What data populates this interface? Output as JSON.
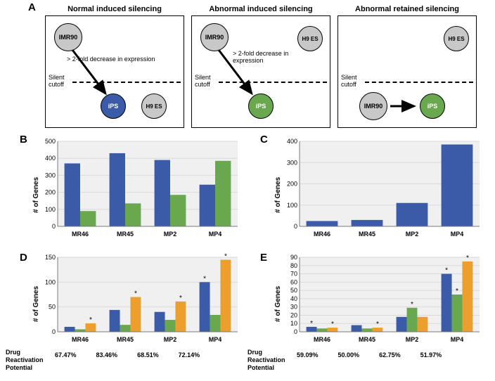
{
  "labels": {
    "A": "A",
    "B": "B",
    "C": "C",
    "D": "D",
    "E": "E"
  },
  "panelA": {
    "titles": [
      "Normal induced silencing",
      "Abnormal induced silencing",
      "Abnormal retained silencing"
    ],
    "cutoff": "Silent\ncutoff",
    "decrease": "> 2-fold decrease in expression",
    "imr90": "IMR90",
    "h9": "H9 ES",
    "ips": "iPS"
  },
  "chartB": {
    "categories": [
      "MR46",
      "MR45",
      "MP2",
      "MP4"
    ],
    "series": [
      {
        "name": "blue",
        "color": "#3b5ba9",
        "values": [
          370,
          430,
          390,
          245
        ]
      },
      {
        "name": "green",
        "color": "#6aa84f",
        "values": [
          90,
          135,
          185,
          385
        ]
      }
    ],
    "ylim": [
      0,
      500
    ],
    "ytick": 100,
    "ylabel": "# of Genes",
    "grid": "#d9d9d9",
    "bg": "#f0f0f0"
  },
  "chartC": {
    "categories": [
      "MR46",
      "MR45",
      "MP2",
      "MP4"
    ],
    "series": [
      {
        "name": "blue",
        "color": "#3b5ba9",
        "values": [
          25,
          30,
          110,
          385
        ]
      }
    ],
    "ylim": [
      0,
      400
    ],
    "ytick": 100,
    "ylabel": "# of Genes",
    "grid": "#d9d9d9",
    "bg": "#f0f0f0"
  },
  "chartD": {
    "categories": [
      "MR46",
      "MR45",
      "MP2",
      "MP4"
    ],
    "series": [
      {
        "name": "blue",
        "color": "#3b5ba9",
        "values": [
          10,
          44,
          40,
          100
        ]
      },
      {
        "name": "green",
        "color": "#6aa84f",
        "values": [
          5,
          14,
          24,
          34
        ]
      },
      {
        "name": "orange",
        "color": "#ed9f2d",
        "values": [
          17,
          70,
          61,
          145
        ]
      }
    ],
    "ylim": [
      0,
      150
    ],
    "ytick": 50,
    "ylabel": "# of Genes",
    "grid": "#d9d9d9",
    "bg": "#f0f0f0",
    "stars": [
      [
        0,
        2
      ],
      [
        1,
        2
      ],
      [
        2,
        2
      ],
      [
        3,
        0
      ],
      [
        3,
        2
      ]
    ],
    "drug": {
      "label": "Drug\nReactivation\nPotential",
      "values": [
        "67.47%",
        "83.46%",
        "68.51%",
        "72.14%"
      ]
    }
  },
  "chartE": {
    "categories": [
      "MR46",
      "MR45",
      "MP2",
      "MP4"
    ],
    "series": [
      {
        "name": "blue",
        "color": "#3b5ba9",
        "values": [
          6,
          8,
          18,
          70
        ]
      },
      {
        "name": "green",
        "color": "#6aa84f",
        "values": [
          4,
          4,
          29,
          45
        ]
      },
      {
        "name": "orange",
        "color": "#ed9f2d",
        "values": [
          5,
          5,
          18,
          85
        ]
      }
    ],
    "ylim": [
      0,
      90
    ],
    "ytick": 10,
    "ylabel": "# of Genes",
    "grid": "#d9d9d9",
    "bg": "#f0f0f0",
    "stars": [
      [
        0,
        0
      ],
      [
        0,
        2
      ],
      [
        1,
        2
      ],
      [
        2,
        1
      ],
      [
        3,
        0
      ],
      [
        3,
        1
      ],
      [
        3,
        2
      ]
    ],
    "drug": {
      "label": "Drug\nReactivation\nPotential",
      "values": [
        "59.09%",
        "50.00%",
        "62.75%",
        "51.97%"
      ]
    }
  }
}
